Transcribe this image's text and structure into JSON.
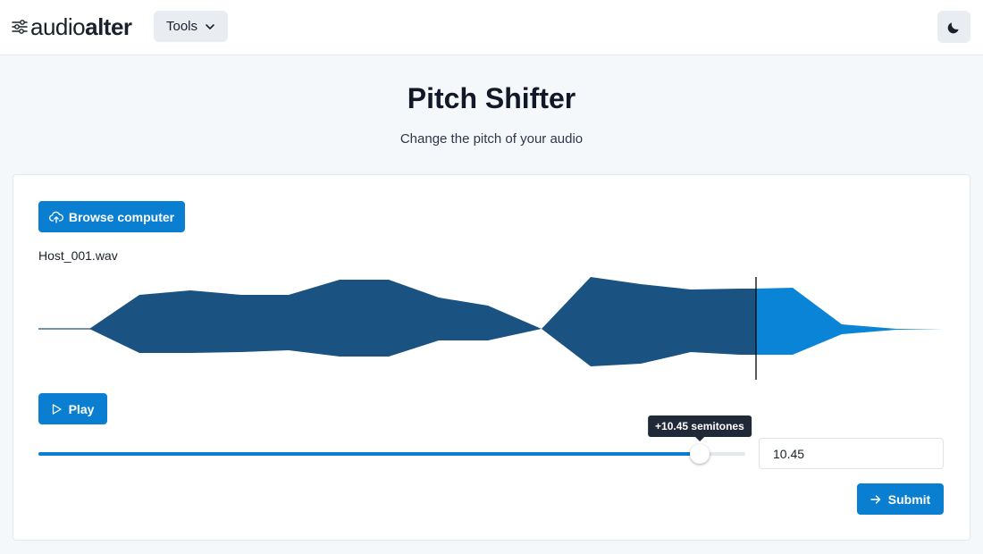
{
  "header": {
    "logo": {
      "part1": "audio",
      "part2": "alter",
      "icon": "sliders-icon"
    },
    "tools_label": "Tools",
    "tools_icon": "chevron-down-icon",
    "theme_icon": "moon-icon"
  },
  "page": {
    "title": "Pitch Shifter",
    "subtitle": "Change the pitch of your audio"
  },
  "upload": {
    "browse_label": "Browse computer",
    "browse_icon": "cloud-upload-icon",
    "filename": "Host_001.wav"
  },
  "player": {
    "play_label": "Play",
    "play_icon": "play-icon",
    "progress_fraction": 0.795
  },
  "pitch": {
    "tooltip": "+10.45 semitones",
    "value": "10.45",
    "min": -12,
    "max": 12
  },
  "submit": {
    "label": "Submit",
    "icon": "arrow-right-icon"
  },
  "colors": {
    "accent": "#0a7fd1",
    "waveform_played": "#1a5281",
    "waveform_unplayed": "#0a84d6"
  }
}
